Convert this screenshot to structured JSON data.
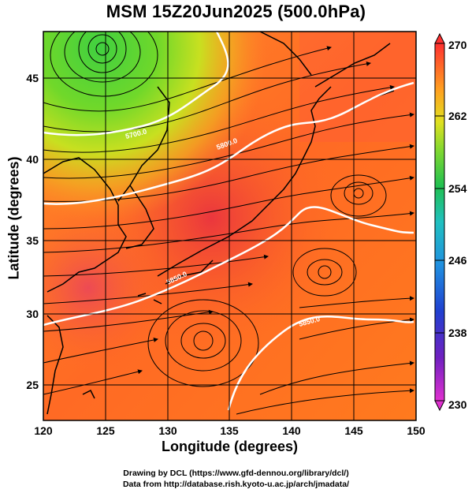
{
  "title": "MSM 15Z20Jun2025 (500.0hPa)",
  "x_axis": {
    "label": "Longitude (degrees)",
    "ticks": [
      "120",
      "125",
      "130",
      "135",
      "140",
      "145",
      "150"
    ],
    "range": [
      120,
      150
    ]
  },
  "y_axis": {
    "label": "Latitude  (degrees)",
    "ticks": [
      "25",
      "30",
      "35",
      "40",
      "45"
    ],
    "range": [
      22.4,
      47.6
    ]
  },
  "colorbar": {
    "ticks": [
      "270",
      "262",
      "254",
      "246",
      "238",
      "230"
    ],
    "range": [
      230,
      270
    ],
    "colors": [
      "#e030d0",
      "#3030c0",
      "#2070e0",
      "#20c0e0",
      "#20d060",
      "#80e030",
      "#e0e020",
      "#ff9000",
      "#ff3030"
    ]
  },
  "contours": [
    {
      "label": "5700.0",
      "value": 5700
    },
    {
      "label": "5800.0",
      "value": 5800
    },
    {
      "label": "5850.0",
      "value": 5850
    },
    {
      "label": "5850.0",
      "value": 5850
    }
  ],
  "credits": {
    "line1": "Drawing by DCL (https://www.gfd-dennou.org/library/dcl/)",
    "line2": "Data from http://database.rish.kyoto-u.ac.jp/arch/jmadata/"
  },
  "colors": {
    "cold_low": "#50d020",
    "warm_field": "#ff7a1e",
    "ridge": "#e8383c",
    "contour_line": "#ffffff",
    "streamline": "#000000"
  }
}
